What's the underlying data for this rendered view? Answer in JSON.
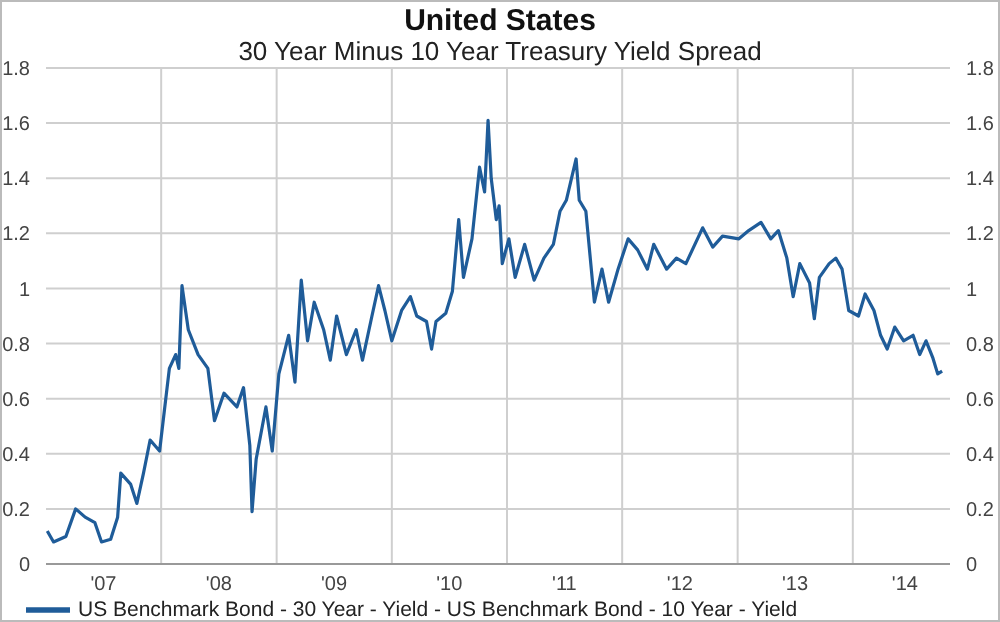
{
  "chart_data": {
    "type": "line",
    "title": "United States",
    "subtitle": "30 Year Minus 10 Year Treasury Yield Spread",
    "x": [
      "2007-01-05",
      "2007-01-25",
      "2007-03-05",
      "2007-04-05",
      "2007-05-05",
      "2007-06-05",
      "2007-06-26",
      "2007-07-25",
      "2007-08-16",
      "2007-08-26",
      "2007-09-26",
      "2007-10-16",
      "2007-11-06",
      "2007-11-27",
      "2007-12-27",
      "2008-01-27",
      "2008-02-16",
      "2008-02-26",
      "2008-03-07",
      "2008-03-27",
      "2008-04-27",
      "2008-05-28",
      "2008-06-18",
      "2008-07-18",
      "2008-08-28",
      "2008-09-18",
      "2008-10-08",
      "2008-10-15",
      "2008-10-28",
      "2008-11-28",
      "2008-12-18",
      "2009-01-08",
      "2009-02-08",
      "2009-02-28",
      "2009-03-20",
      "2009-04-09",
      "2009-04-30",
      "2009-05-30",
      "2009-06-20",
      "2009-07-10",
      "2009-08-10",
      "2009-09-10",
      "2009-09-30",
      "2009-10-30",
      "2009-11-20",
      "2009-12-10",
      "2010-01-01",
      "2010-02-01",
      "2010-03-01",
      "2010-03-21",
      "2010-04-21",
      "2010-05-07",
      "2010-05-21",
      "2010-06-21",
      "2010-07-12",
      "2010-08-01",
      "2010-08-16",
      "2010-09-12",
      "2010-10-06",
      "2010-10-22",
      "2010-11-02",
      "2010-11-12",
      "2010-11-28",
      "2010-12-07",
      "2010-12-17",
      "2011-01-07",
      "2011-01-27",
      "2011-02-26",
      "2011-03-28",
      "2011-04-28",
      "2011-05-28",
      "2011-06-18",
      "2011-07-08",
      "2011-08-08",
      "2011-08-18",
      "2011-09-08",
      "2011-10-05",
      "2011-10-29",
      "2011-11-19",
      "2011-12-19",
      "2012-01-20",
      "2012-02-19",
      "2012-03-21",
      "2012-04-10",
      "2012-05-21",
      "2012-06-21",
      "2012-07-21",
      "2012-09-12",
      "2012-10-14",
      "2012-11-14",
      "2013-01-05",
      "2013-02-05",
      "2013-03-16",
      "2013-04-16",
      "2013-05-10",
      "2013-06-06",
      "2013-06-26",
      "2013-07-17",
      "2013-08-17",
      "2013-09-01",
      "2013-09-17",
      "2013-10-18",
      "2013-11-08",
      "2013-11-28",
      "2013-12-19",
      "2014-01-19",
      "2014-02-09",
      "2014-03-09",
      "2014-03-30",
      "2014-04-20",
      "2014-05-14",
      "2014-06-11",
      "2014-07-11",
      "2014-08-01",
      "2014-08-21",
      "2014-09-11",
      "2014-09-27",
      "2014-10-11"
    ],
    "series": [
      {
        "name": "US Benchmark Bond - 30 Year - Yield - US Benchmark Bond - 10 Year - Yield",
        "color": "#1f5c99",
        "values": [
          0.12,
          0.08,
          0.1,
          0.2,
          0.17,
          0.15,
          0.08,
          0.09,
          0.17,
          0.33,
          0.29,
          0.22,
          0.33,
          0.45,
          0.41,
          0.71,
          0.76,
          0.71,
          1.01,
          0.85,
          0.76,
          0.71,
          0.52,
          0.62,
          0.57,
          0.64,
          0.43,
          0.19,
          0.38,
          0.57,
          0.41,
          0.69,
          0.83,
          0.66,
          1.03,
          0.81,
          0.95,
          0.85,
          0.74,
          0.9,
          0.76,
          0.85,
          0.74,
          0.9,
          1.01,
          0.92,
          0.81,
          0.92,
          0.97,
          0.9,
          0.88,
          0.78,
          0.88,
          0.91,
          0.99,
          1.25,
          1.04,
          1.18,
          1.44,
          1.35,
          1.61,
          1.4,
          1.25,
          1.3,
          1.09,
          1.18,
          1.04,
          1.16,
          1.03,
          1.11,
          1.16,
          1.28,
          1.32,
          1.47,
          1.32,
          1.28,
          0.95,
          1.07,
          0.95,
          1.07,
          1.18,
          1.14,
          1.07,
          1.16,
          1.07,
          1.11,
          1.09,
          1.22,
          1.15,
          1.19,
          1.18,
          1.21,
          1.24,
          1.18,
          1.21,
          1.11,
          0.97,
          1.09,
          1.02,
          0.89,
          1.04,
          1.09,
          1.11,
          1.07,
          0.92,
          0.9,
          0.98,
          0.92,
          0.83,
          0.78,
          0.86,
          0.81,
          0.83,
          0.76,
          0.81,
          0.75,
          0.69,
          0.7
        ]
      }
    ],
    "xlim": [
      "2007-01-01",
      "2014-11-05"
    ],
    "xticks": [
      {
        "value": "2007-07-02",
        "label": "'07"
      },
      {
        "value": "2008-01-01",
        "label": null
      },
      {
        "value": "2008-07-02",
        "label": "'08"
      },
      {
        "value": "2009-01-01",
        "label": null
      },
      {
        "value": "2009-07-02",
        "label": "'09"
      },
      {
        "value": "2010-01-01",
        "label": null
      },
      {
        "value": "2010-07-02",
        "label": "'10"
      },
      {
        "value": "2011-01-01",
        "label": null
      },
      {
        "value": "2011-07-02",
        "label": "'11"
      },
      {
        "value": "2012-01-01",
        "label": null
      },
      {
        "value": "2012-07-02",
        "label": "'12"
      },
      {
        "value": "2013-01-01",
        "label": null
      },
      {
        "value": "2013-07-02",
        "label": "'13"
      },
      {
        "value": "2014-01-01",
        "label": null
      },
      {
        "value": "2014-06-15",
        "label": "'14"
      }
    ],
    "ylim": [
      0,
      1.8
    ],
    "yticks": [
      0,
      0.2,
      0.4,
      0.6,
      0.8,
      1,
      1.2,
      1.4,
      1.6,
      1.8
    ],
    "y2lim": [
      0,
      1.8
    ],
    "y2ticks": [
      0,
      0.2,
      0.4,
      0.6,
      0.8,
      1,
      1.2,
      1.4,
      1.6,
      1.8
    ],
    "grid": true,
    "legend": "bottom left",
    "marker": "none",
    "line_style": "solid"
  }
}
